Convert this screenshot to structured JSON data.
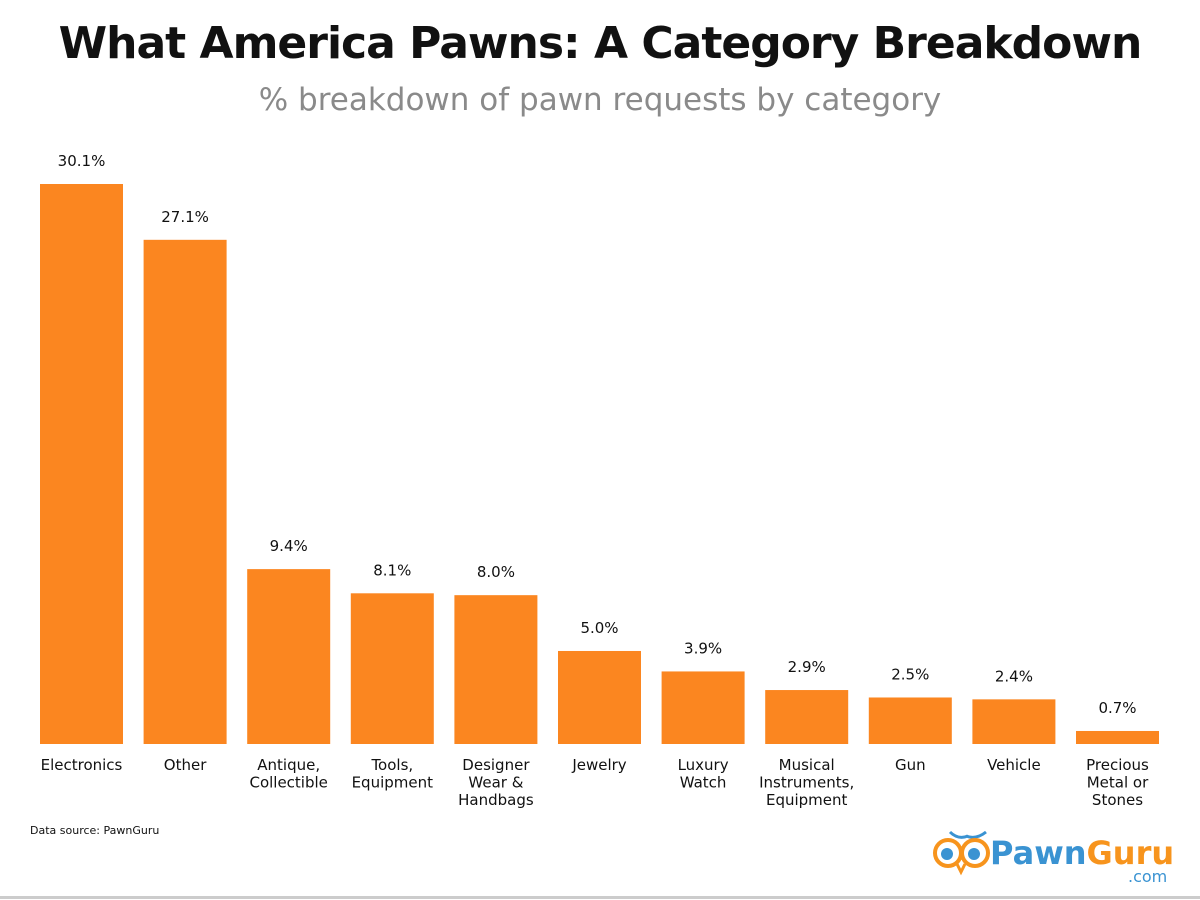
{
  "chart_data": {
    "type": "bar",
    "title": "What America Pawns: A Category Breakdown",
    "subtitle": "% breakdown of pawn requests by category",
    "categories": [
      [
        "Electronics"
      ],
      [
        "Other"
      ],
      [
        "Antique,",
        "Collectible"
      ],
      [
        "Tools,",
        "Equipment"
      ],
      [
        "Designer",
        "Wear &",
        "Handbags"
      ],
      [
        "Jewelry"
      ],
      [
        "Luxury",
        "Watch"
      ],
      [
        "Musical",
        "Instruments,",
        "Equipment"
      ],
      [
        "Gun"
      ],
      [
        "Vehicle"
      ],
      [
        "Precious",
        "Metal or",
        "Stones"
      ]
    ],
    "values": [
      30.1,
      27.1,
      9.4,
      8.1,
      8.0,
      5.0,
      3.9,
      2.9,
      2.5,
      2.4,
      0.7
    ],
    "data_labels": [
      "30.1%",
      "27.1%",
      "9.4%",
      "8.1%",
      "8.0%",
      "5.0%",
      "3.9%",
      "2.9%",
      "2.5%",
      "2.4%",
      "0.7%"
    ],
    "xlabel": "",
    "ylabel": "",
    "ylim": [
      0,
      30.1
    ],
    "grid": false,
    "bar_color": "#fb8620"
  },
  "source": "Data source: PawnGuru",
  "logo": {
    "text": "PawnGuru",
    "suffix": ".com",
    "blue": "#3a93d2",
    "orange": "#f7941d"
  }
}
